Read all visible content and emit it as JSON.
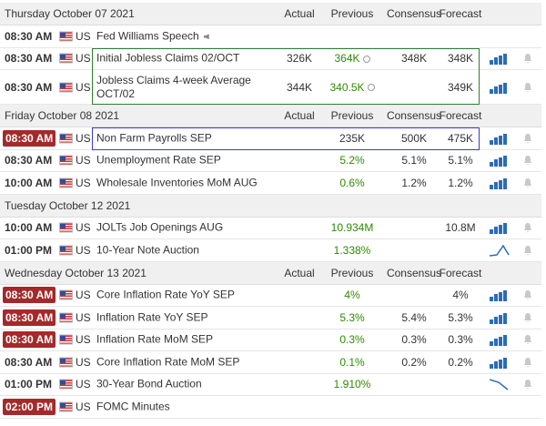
{
  "days": [
    {
      "date": "Thursday October 07 2021",
      "columns": [
        "Actual",
        "Previous",
        "Consensus",
        "Forecast"
      ],
      "events": [
        {
          "time": "08:30 AM",
          "country": "US",
          "name": "Fed Williams Speech",
          "audio": true
        },
        {
          "time": "08:30 AM",
          "country": "US",
          "name": "Initial Jobless Claims 02/OCT",
          "actual": "326K",
          "previous": "364K",
          "previous_revised": true,
          "previous_color": "#2e8b00",
          "consensus": "348K",
          "forecast": "348K",
          "outline": "#2e7d32",
          "chart": "bars"
        },
        {
          "time": "08:30 AM",
          "country": "US",
          "name": "Jobless Claims 4-week Average OCT/02",
          "actual": "344K",
          "previous": "340.5K",
          "previous_revised": true,
          "previous_color": "#2e8b00",
          "forecast": "349K",
          "outline": "#2e7d32",
          "chart": "bars"
        }
      ]
    },
    {
      "date": "Friday October 08 2021",
      "columns": [
        "Actual",
        "Previous",
        "Consensus",
        "Forecast"
      ],
      "events": [
        {
          "time": "08:30 AM",
          "time_highlight": true,
          "country": "US",
          "name": "Non Farm Payrolls SEP",
          "previous": "235K",
          "consensus": "500K",
          "forecast": "475K",
          "outline": "#3b3bd1",
          "chart": "bars"
        },
        {
          "time": "08:30 AM",
          "country": "US",
          "name": "Unemployment Rate SEP",
          "previous": "5.2%",
          "previous_color": "#2e8b00",
          "consensus": "5.1%",
          "forecast": "5.1%",
          "chart": "bars"
        },
        {
          "time": "10:00 AM",
          "country": "US",
          "name": "Wholesale Inventories MoM AUG",
          "previous": "0.6%",
          "previous_color": "#2e8b00",
          "consensus": "1.2%",
          "forecast": "1.2%",
          "chart": "bars"
        }
      ]
    },
    {
      "date": "Tuesday October 12 2021",
      "events": [
        {
          "time": "10:00 AM",
          "country": "US",
          "name": "JOLTs Job Openings AUG",
          "previous": "10.934M",
          "previous_color": "#2e8b00",
          "forecast": "10.8M",
          "chart": "bars"
        },
        {
          "time": "01:00 PM",
          "country": "US",
          "name": "10-Year Note Auction",
          "previous": "1.338%",
          "previous_color": "#2e8b00",
          "chart": "line-up"
        }
      ]
    },
    {
      "date": "Wednesday October 13 2021",
      "columns": [
        "Actual",
        "Previous",
        "Consensus",
        "Forecast"
      ],
      "events": [
        {
          "time": "08:30 AM",
          "time_highlight": true,
          "country": "US",
          "name": "Core Inflation Rate YoY SEP",
          "previous": "4%",
          "previous_color": "#2e8b00",
          "forecast": "4%",
          "chart": "bars"
        },
        {
          "time": "08:30 AM",
          "time_highlight": true,
          "country": "US",
          "name": "Inflation Rate YoY SEP",
          "previous": "5.3%",
          "previous_color": "#2e8b00",
          "consensus": "5.4%",
          "forecast": "5.3%",
          "chart": "bars"
        },
        {
          "time": "08:30 AM",
          "time_highlight": true,
          "country": "US",
          "name": "Inflation Rate MoM SEP",
          "previous": "0.3%",
          "previous_color": "#2e8b00",
          "consensus": "0.3%",
          "forecast": "0.3%",
          "chart": "bars"
        },
        {
          "time": "08:30 AM",
          "country": "US",
          "name": "Core Inflation Rate MoM SEP",
          "previous": "0.1%",
          "previous_color": "#2e8b00",
          "consensus": "0.2%",
          "forecast": "0.2%",
          "chart": "bars"
        },
        {
          "time": "01:00 PM",
          "country": "US",
          "name": "30-Year Bond Auction",
          "previous": "1.910%",
          "previous_color": "#2e8b00",
          "chart": "line-down"
        },
        {
          "time": "02:00 PM",
          "time_highlight": true,
          "country": "US",
          "name": "FOMC Minutes"
        }
      ]
    }
  ]
}
